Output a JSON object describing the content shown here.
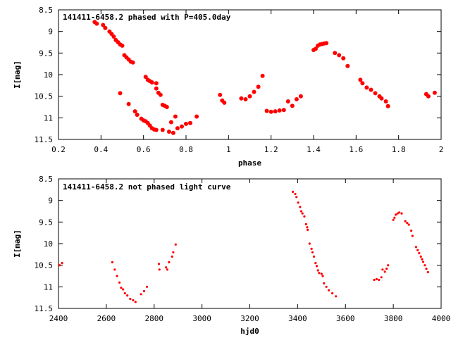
{
  "chart_data": [
    {
      "type": "scatter",
      "title": "141411-6458.2 phased with P=405.0day",
      "xlabel": "phase",
      "ylabel": "I[mag]",
      "xlim": [
        0.2,
        2.0
      ],
      "ylim": [
        8.5,
        11.5
      ],
      "y_inverted": true,
      "grid": false,
      "legend": "none",
      "marker": "filled-circle",
      "color": "#ff0000",
      "x_ticks": [
        "0.2",
        "0.4",
        "0.6",
        "0.8",
        "1",
        "1.2",
        "1.4",
        "1.6",
        "1.8",
        "2"
      ],
      "y_ticks": [
        "8.5",
        "9",
        "9.5",
        "10",
        "10.5",
        "11",
        "11.5"
      ],
      "points": [
        [
          0.37,
          8.78
        ],
        [
          0.38,
          8.82
        ],
        [
          0.41,
          8.85
        ],
        [
          0.42,
          8.92
        ],
        [
          0.44,
          9.0
        ],
        [
          0.45,
          9.06
        ],
        [
          0.46,
          9.12
        ],
        [
          0.47,
          9.2
        ],
        [
          0.48,
          9.25
        ],
        [
          0.49,
          9.3
        ],
        [
          0.5,
          9.33
        ],
        [
          0.51,
          9.55
        ],
        [
          0.52,
          9.6
        ],
        [
          0.53,
          9.65
        ],
        [
          0.54,
          9.7
        ],
        [
          0.55,
          9.72
        ],
        [
          0.49,
          10.43
        ],
        [
          0.53,
          10.68
        ],
        [
          0.56,
          10.85
        ],
        [
          0.57,
          10.93
        ],
        [
          0.59,
          11.02
        ],
        [
          0.6,
          11.06
        ],
        [
          0.61,
          11.08
        ],
        [
          0.62,
          11.12
        ],
        [
          0.63,
          11.18
        ],
        [
          0.64,
          11.24
        ],
        [
          0.65,
          11.27
        ],
        [
          0.66,
          11.28
        ],
        [
          0.61,
          10.05
        ],
        [
          0.62,
          10.12
        ],
        [
          0.63,
          10.15
        ],
        [
          0.64,
          10.18
        ],
        [
          0.66,
          10.2
        ],
        [
          0.66,
          10.32
        ],
        [
          0.67,
          10.42
        ],
        [
          0.68,
          10.47
        ],
        [
          0.69,
          10.7
        ],
        [
          0.7,
          10.72
        ],
        [
          0.71,
          10.75
        ],
        [
          0.73,
          11.1
        ],
        [
          0.75,
          10.97
        ],
        [
          0.69,
          11.28
        ],
        [
          0.72,
          11.32
        ],
        [
          0.74,
          11.35
        ],
        [
          0.76,
          11.24
        ],
        [
          0.78,
          11.2
        ],
        [
          0.8,
          11.14
        ],
        [
          0.82,
          11.12
        ],
        [
          0.85,
          10.97
        ],
        [
          0.96,
          10.47
        ],
        [
          0.97,
          10.6
        ],
        [
          0.98,
          10.65
        ],
        [
          1.06,
          10.55
        ],
        [
          1.08,
          10.57
        ],
        [
          1.1,
          10.5
        ],
        [
          1.12,
          10.4
        ],
        [
          1.14,
          10.28
        ],
        [
          1.16,
          10.03
        ],
        [
          1.18,
          10.84
        ],
        [
          1.2,
          10.86
        ],
        [
          1.22,
          10.85
        ],
        [
          1.24,
          10.83
        ],
        [
          1.26,
          10.82
        ],
        [
          1.28,
          10.62
        ],
        [
          1.3,
          10.72
        ],
        [
          1.32,
          10.57
        ],
        [
          1.34,
          10.5
        ],
        [
          1.4,
          9.43
        ],
        [
          1.41,
          9.4
        ],
        [
          1.42,
          9.33
        ],
        [
          1.43,
          9.3
        ],
        [
          1.44,
          9.29
        ],
        [
          1.45,
          9.28
        ],
        [
          1.46,
          9.27
        ],
        [
          1.5,
          9.5
        ],
        [
          1.52,
          9.55
        ],
        [
          1.54,
          9.62
        ],
        [
          1.56,
          9.8
        ],
        [
          1.62,
          10.12
        ],
        [
          1.63,
          10.2
        ],
        [
          1.65,
          10.3
        ],
        [
          1.67,
          10.35
        ],
        [
          1.69,
          10.43
        ],
        [
          1.71,
          10.5
        ],
        [
          1.72,
          10.55
        ],
        [
          1.74,
          10.62
        ],
        [
          1.75,
          10.73
        ],
        [
          1.93,
          10.45
        ],
        [
          1.94,
          10.5
        ],
        [
          1.97,
          10.42
        ]
      ]
    },
    {
      "type": "scatter",
      "title": "141411-6458.2 not phased light curve",
      "xlabel": "hjd0",
      "ylabel": "I[mag]",
      "xlim": [
        2400,
        4000
      ],
      "ylim": [
        8.5,
        11.5
      ],
      "y_inverted": true,
      "grid": false,
      "legend": "none",
      "marker": "dot",
      "color": "#ff0000",
      "x_ticks": [
        "2400",
        "2600",
        "2800",
        "3000",
        "3200",
        "3400",
        "3600",
        "3800",
        "4000"
      ],
      "y_ticks": [
        "8.5",
        "9",
        "9.5",
        "10",
        "10.5",
        "11",
        "11.5"
      ],
      "points": [
        [
          2405,
          10.5
        ],
        [
          2415,
          10.45
        ],
        [
          2625,
          10.43
        ],
        [
          2635,
          10.6
        ],
        [
          2645,
          10.75
        ],
        [
          2655,
          10.9
        ],
        [
          2662,
          11.02
        ],
        [
          2670,
          11.06
        ],
        [
          2678,
          11.15
        ],
        [
          2688,
          11.2
        ],
        [
          2700,
          11.28
        ],
        [
          2712,
          11.31
        ],
        [
          2722,
          11.35
        ],
        [
          2745,
          11.17
        ],
        [
          2758,
          11.1
        ],
        [
          2770,
          11.0
        ],
        [
          2820,
          10.47
        ],
        [
          2822,
          10.6
        ],
        [
          2850,
          10.55
        ],
        [
          2855,
          10.6
        ],
        [
          2862,
          10.43
        ],
        [
          2875,
          10.3
        ],
        [
          2880,
          10.2
        ],
        [
          2890,
          10.02
        ],
        [
          3380,
          8.8
        ],
        [
          3390,
          8.85
        ],
        [
          3395,
          8.92
        ],
        [
          3402,
          9.05
        ],
        [
          3410,
          9.15
        ],
        [
          3415,
          9.25
        ],
        [
          3420,
          9.3
        ],
        [
          3428,
          9.37
        ],
        [
          3435,
          9.55
        ],
        [
          3440,
          9.62
        ],
        [
          3442,
          9.68
        ],
        [
          3450,
          10.0
        ],
        [
          3458,
          10.12
        ],
        [
          3462,
          10.2
        ],
        [
          3468,
          10.3
        ],
        [
          3475,
          10.45
        ],
        [
          3480,
          10.52
        ],
        [
          3485,
          10.62
        ],
        [
          3490,
          10.68
        ],
        [
          3500,
          10.7
        ],
        [
          3505,
          10.75
        ],
        [
          3510,
          10.92
        ],
        [
          3520,
          11.0
        ],
        [
          3530,
          11.08
        ],
        [
          3545,
          11.15
        ],
        [
          3560,
          11.22
        ],
        [
          3720,
          10.84
        ],
        [
          3730,
          10.82
        ],
        [
          3740,
          10.84
        ],
        [
          3750,
          10.78
        ],
        [
          3755,
          10.6
        ],
        [
          3765,
          10.65
        ],
        [
          3772,
          10.58
        ],
        [
          3778,
          10.5
        ],
        [
          3800,
          9.45
        ],
        [
          3805,
          9.4
        ],
        [
          3810,
          9.33
        ],
        [
          3818,
          9.3
        ],
        [
          3825,
          9.28
        ],
        [
          3835,
          9.3
        ],
        [
          3850,
          9.48
        ],
        [
          3858,
          9.52
        ],
        [
          3865,
          9.56
        ],
        [
          3875,
          9.7
        ],
        [
          3880,
          9.82
        ],
        [
          3895,
          10.08
        ],
        [
          3902,
          10.15
        ],
        [
          3908,
          10.22
        ],
        [
          3915,
          10.3
        ],
        [
          3920,
          10.36
        ],
        [
          3925,
          10.42
        ],
        [
          3932,
          10.5
        ],
        [
          3938,
          10.58
        ],
        [
          3945,
          10.66
        ]
      ]
    }
  ]
}
